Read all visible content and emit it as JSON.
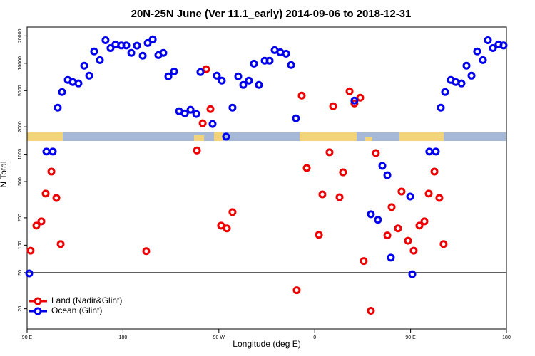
{
  "chart_data": {
    "type": "scatter",
    "title": "20N-25N June (Ver 11.1_early)   2014-09-06 to 2018-12-31",
    "xlabel": "Longitude (deg E)",
    "ylabel": "N Total",
    "log_y": true,
    "xlim": [
      90,
      540
    ],
    "ylim": [
      12,
      25000
    ],
    "xticks": [
      {
        "value": 90,
        "label": "90 E"
      },
      180,
      {
        "value": 270,
        "label": "90 W"
      },
      {
        "value": 360,
        "label": "0"
      },
      {
        "value": 450,
        "label": "90 E"
      },
      {
        "value": 540,
        "label": "180"
      }
    ],
    "yticks": [
      20,
      50,
      100,
      200,
      500,
      1000,
      2000,
      5000,
      10000,
      20000
    ],
    "reference_line": 50,
    "legend": "bottom-left",
    "series": [
      {
        "name": "Land (Nadir&Glint)",
        "color": "#ee0000",
        "x": [
          93.3,
          98.7,
          103.4,
          107.4,
          112.8,
          117.5,
          121.5,
          201.8,
          249.4,
          254.8,
          258.1,
          262.1,
          272.1,
          277.5,
          282.8,
          343.1,
          347.8,
          352.5,
          363.9,
          367.2,
          373.9,
          377.3,
          383.3,
          386.6,
          392.7,
          397.3,
          402.7,
          406.0,
          412.7,
          417.4,
          428.2,
          432.2,
          438.2,
          441.5,
          447.6,
          452.9,
          458.3,
          463.0,
          467.0,
          472.4,
          477.0,
          481.0
        ],
        "values": [
          87,
          164,
          183,
          369,
          644,
          331,
          103,
          86,
          1100,
          2190,
          8590,
          3130,
          164,
          153,
          231,
          32,
          4410,
          705,
          130,
          362,
          1050,
          3370,
          337,
          632,
          4920,
          3620,
          4180,
          67,
          19,
          1030,
          128,
          262,
          153,
          389,
          112,
          87,
          164,
          183,
          369,
          644,
          331,
          103
        ]
      },
      {
        "name": "Ocean (Glint)",
        "color": "#0000ee",
        "x": [
          92.0,
          108.1,
          114.1,
          118.8,
          122.8,
          128.2,
          132.9,
          138.2,
          143.6,
          148.3,
          152.9,
          158.3,
          163.6,
          168.3,
          173.0,
          178.4,
          183.1,
          187.8,
          193.1,
          198.5,
          203.2,
          207.9,
          213.2,
          217.9,
          222.6,
          228.0,
          232.7,
          238.1,
          243.4,
          248.8,
          252.7,
          264.1,
          268.1,
          272.8,
          276.8,
          282.8,
          288.2,
          292.9,
          298.2,
          302.9,
          307.6,
          313.0,
          317.7,
          322.4,
          327.7,
          333.1,
          337.8,
          342.4,
          397.3,
          412.7,
          419.4,
          423.5,
          428.2,
          431.5,
          449.6,
          451.6,
          467.6,
          473.7,
          478.4,
          482.4,
          487.7,
          492.4,
          497.8,
          502.5,
          507.2,
          512.5,
          517.9,
          522.6,
          527.3,
          532.6,
          537.3
        ],
        "values": [
          49,
          1070,
          1070,
          3250,
          4830,
          6560,
          6210,
          6000,
          9400,
          7300,
          13500,
          10840,
          17900,
          14700,
          16100,
          15700,
          15700,
          13000,
          15600,
          12100,
          16700,
          18300,
          12300,
          13000,
          7180,
          8130,
          2970,
          2810,
          3080,
          2770,
          8000,
          2150,
          7300,
          6440,
          1560,
          3250,
          7180,
          5780,
          6440,
          9910,
          5780,
          10660,
          10660,
          13960,
          13200,
          12760,
          9570,
          2480,
          3890,
          219,
          190,
          744,
          588,
          73,
          343,
          48,
          1070,
          1070,
          3250,
          4830,
          6560,
          6210,
          6000,
          9400,
          7300,
          13500,
          10840,
          17900,
          14700,
          16100,
          15700
        ]
      }
    ]
  }
}
